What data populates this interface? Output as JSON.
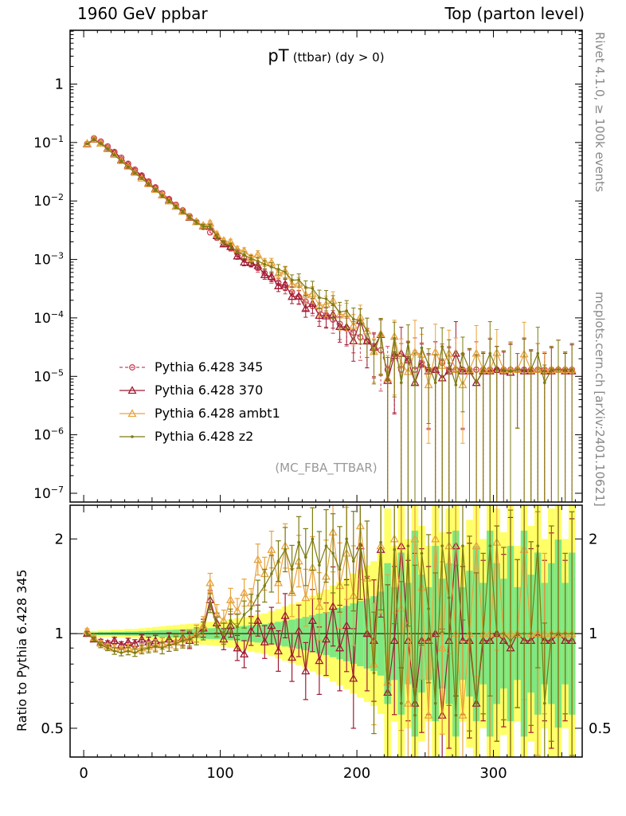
{
  "header": {
    "left": "1960 GeV ppbar",
    "right": "Top (parton level)"
  },
  "titles": {
    "main": "pT",
    "sub": "(ttbar) (dy > 0)"
  },
  "watermark": "(MC_FBA_TTBAR)",
  "side_labels": {
    "right_top": "Rivet 4.1.0, ≥ 100k events",
    "right_bottom": "mcplots.cern.ch [arXiv:2401.10621]",
    "ratio_ylabel": "Ratio to Pythia 6.428 345"
  },
  "colors": {
    "band_yellow": "#ffff66",
    "band_green": "#80e880",
    "frame": "#000000",
    "watermark": "#999999",
    "side_text": "#888888"
  },
  "chart_data": {
    "type": "line",
    "title": "pT (ttbar) (dy > 0)",
    "xlim": [
      -10,
      365
    ],
    "x_label_ticks": [
      0,
      100,
      200,
      300
    ],
    "main_y_decades": [
      0,
      -1,
      -2,
      -3,
      -4,
      -5,
      -6,
      -7
    ],
    "main_ylim_exp": [
      0.92,
      -7.15
    ],
    "ratio_ticks": [
      2,
      1,
      0.5
    ],
    "ratio_minor_ticks": [
      0.6,
      0.7,
      0.8,
      0.9
    ],
    "ratio_ylim": [
      2.56,
      0.405
    ],
    "x": [
      2.5,
      7.5,
      12.5,
      17.5,
      22.5,
      27.5,
      32.5,
      37.5,
      42.5,
      47.5,
      52.5,
      57.5,
      62.5,
      67.5,
      72.5,
      77.5,
      82.5,
      87.5,
      92.5,
      97.5,
      102.5,
      107.5,
      112.5,
      117.5,
      122.5,
      127.5,
      132.5,
      137.5,
      142.5,
      147.5,
      152.5,
      157.5,
      162.5,
      167.5,
      172.5,
      177.5,
      182.5,
      187.5,
      192.5,
      197.5,
      202.5,
      207.5,
      212.5,
      217.5,
      222.5,
      227.5,
      232.5,
      237.5,
      242.5,
      247.5,
      252.5,
      257.5,
      262.5,
      267.5,
      272.5,
      277.5,
      282.5,
      287.5,
      292.5,
      297.5,
      302.5,
      307.5,
      312.5,
      317.5,
      322.5,
      327.5,
      332.5,
      337.5,
      342.5,
      347.5,
      352.5,
      357.5
    ],
    "reference": {
      "name": "Pythia 6.428 345",
      "color": "#cc4455",
      "marker": "circle",
      "dashed": true,
      "values": [
        0.095,
        0.118,
        0.104,
        0.086,
        0.069,
        0.055,
        0.0435,
        0.0345,
        0.0273,
        0.0216,
        0.0171,
        0.0136,
        0.0108,
        0.0086,
        0.0069,
        0.0055,
        0.0044,
        0.0036,
        0.0029,
        0.00235,
        0.00191,
        0.00156,
        0.00127,
        0.00104,
        0.00086,
        0.00071,
        0.00058,
        0.00048,
        0.0004,
        0.00033,
        0.000275,
        0.00023,
        0.00019,
        0.00016,
        0.000134,
        0.000112,
        9.4e-05,
        7.9e-05,
        6.6e-05,
        5.6e-05,
        4.7e-05,
        4e-05,
        3.3e-05,
        2.8e-05,
        1.3e-05,
        2.4e-05,
        1.3e-05,
        2e-05,
        1.3e-05,
        1.7e-05,
        1.3e-05,
        1.3e-05,
        1.7e-05,
        1.3e-05,
        1.3e-05,
        1.3e-05,
        1.3e-05,
        1.3e-05,
        1.3e-05,
        1.3e-05,
        1.3e-05,
        1.3e-05,
        1.3e-05,
        1.3e-05,
        1.3e-05,
        1.3e-05,
        1.3e-05,
        1.3e-05,
        1.3e-05,
        1.3e-05,
        1.3e-05,
        1.3e-05
      ],
      "err_frac": [
        0.02,
        0.02,
        0.025,
        0.025,
        0.03,
        0.03,
        0.035,
        0.035,
        0.04,
        0.045,
        0.05,
        0.055,
        0.06,
        0.065,
        0.07,
        0.075,
        0.08,
        0.085,
        0.09,
        0.095,
        0.1,
        0.11,
        0.12,
        0.13,
        0.14,
        0.15,
        0.16,
        0.18,
        0.2,
        0.22,
        0.24,
        0.26,
        0.29,
        0.32,
        0.35,
        0.38,
        0.42,
        0.46,
        0.5,
        0.55,
        0.6,
        0.65,
        0.7,
        0.8,
        1.5,
        0.9,
        1.8,
        1.0,
        2.5,
        1.2,
        0.9,
        2.0,
        1.1,
        1.5,
        2.5,
        0.9,
        1.3,
        2.0,
        1.0,
        2.5,
        1.5,
        1.1,
        2.0,
        0.9,
        2.5,
        1.2,
        1.8,
        1.0,
        1.5,
        2.2,
        1.0,
        1.8
      ]
    },
    "series": [
      {
        "name": "Pythia 6.428 370",
        "color": "#a01a33",
        "marker": "triangle",
        "dashed": false,
        "ratio": [
          1.0,
          0.96,
          0.94,
          0.93,
          0.95,
          0.92,
          0.94,
          0.93,
          0.96,
          0.94,
          0.95,
          0.93,
          0.96,
          0.94,
          0.97,
          0.95,
          1.0,
          1.04,
          1.28,
          1.08,
          0.96,
          1.06,
          0.9,
          0.86,
          1.02,
          1.1,
          0.94,
          1.06,
          0.88,
          1.14,
          0.84,
          1.02,
          0.76,
          1.1,
          0.82,
          0.96,
          1.22,
          0.9,
          1.06,
          0.72,
          1.9,
          1.0,
          0.95,
          1.85,
          0.65,
          0.95,
          1.9,
          0.95,
          0.6,
          0.95,
          0.95,
          1.0,
          0.55,
          0.95,
          1.9,
          0.95,
          0.95,
          0.6,
          0.95,
          0.95,
          1.0,
          0.95,
          0.9,
          1.0,
          0.95,
          0.95,
          1.0,
          0.95,
          0.95,
          1.0,
          0.95,
          0.95
        ]
      },
      {
        "name": "Pythia 6.428 ambt1",
        "color": "#e8a33d",
        "marker": "triangle",
        "dashed": false,
        "ratio": [
          1.02,
          0.97,
          0.93,
          0.91,
          0.9,
          0.89,
          0.9,
          0.89,
          0.9,
          0.91,
          0.92,
          0.93,
          0.92,
          0.94,
          0.96,
          0.97,
          1.0,
          1.06,
          1.45,
          1.15,
          1.1,
          1.28,
          1.18,
          1.35,
          1.25,
          1.72,
          1.55,
          1.85,
          1.45,
          1.9,
          1.35,
          1.7,
          1.3,
          1.62,
          1.22,
          1.52,
          2.1,
          1.42,
          1.8,
          1.32,
          2.2,
          1.5,
          0.8,
          1.9,
          0.7,
          2.0,
          1.2,
          0.6,
          2.0,
          1.4,
          0.55,
          2.0,
          0.9,
          1.9,
          1.0,
          0.55,
          1.0,
          1.9,
          1.0,
          1.0,
          1.95,
          1.0,
          1.0,
          1.0,
          1.85,
          1.0,
          1.0,
          1.0,
          1.0,
          1.0,
          1.0,
          1.0
        ]
      },
      {
        "name": "Pythia 6.428 z2",
        "color": "#7d7b12",
        "marker": "dot",
        "dashed": false,
        "ratio": [
          1.0,
          0.96,
          0.92,
          0.9,
          0.88,
          0.87,
          0.88,
          0.87,
          0.89,
          0.9,
          0.91,
          0.9,
          0.92,
          0.93,
          0.95,
          0.96,
          0.98,
          1.02,
          1.25,
          1.05,
          1.0,
          1.1,
          1.05,
          1.15,
          1.2,
          1.32,
          1.42,
          1.55,
          1.7,
          1.85,
          1.6,
          1.95,
          1.75,
          2.0,
          1.65,
          1.9,
          1.8,
          1.6,
          2.0,
          1.7,
          1.9,
          1.5,
          0.75,
          1.95,
          0.65,
          1.85,
          0.6,
          1.9,
          0.55,
          1.8,
          1.2,
          0.6,
          1.9,
          1.3,
          0.55,
          1.9,
          1.0,
          0.6,
          1.0,
          1.9,
          1.0,
          1.0,
          0.95,
          1.0,
          1.0,
          1.0,
          1.9,
          0.6,
          1.0,
          1.0,
          1.0,
          1.0
        ]
      }
    ]
  }
}
